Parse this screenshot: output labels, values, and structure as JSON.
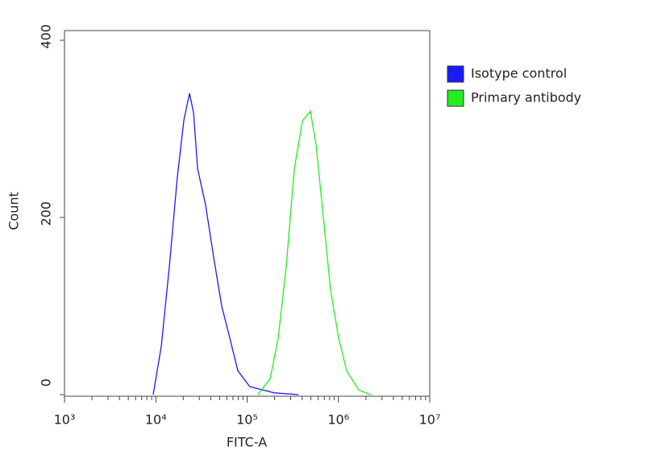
{
  "chart_data": {
    "type": "line",
    "xlabel": "FITC-A",
    "ylabel": "Count",
    "xscale": "log",
    "xlim": [
      1000,
      10000000
    ],
    "ylim": [
      0,
      400
    ],
    "xticks": [
      {
        "value": 1000,
        "label": "10³"
      },
      {
        "value": 10000,
        "label": "10⁴"
      },
      {
        "value": 100000,
        "label": "10⁵"
      },
      {
        "value": 1000000,
        "label": "10⁶"
      },
      {
        "value": 10000000,
        "label": "10⁷"
      }
    ],
    "xminor_ticks": [
      2000,
      3000,
      4000,
      5000,
      6000,
      7000,
      8000,
      9000,
      20000,
      30000,
      40000,
      50000,
      60000,
      70000,
      80000,
      90000,
      200000,
      300000,
      400000,
      500000,
      600000,
      700000,
      800000,
      900000,
      2000000,
      3000000,
      4000000,
      5000000,
      6000000,
      7000000,
      8000000,
      9000000
    ],
    "yticks": [
      0,
      200,
      400
    ],
    "legend": "right",
    "series": [
      {
        "name": "Isotype control",
        "color": "#1a1aff",
        "x": [
          9360,
          11500,
          14100,
          17200,
          20300,
          23400,
          25900,
          28700,
          35100,
          43000,
          52700,
          64600,
          79100,
          107000,
          198000,
          364000
        ],
        "values": [
          0,
          55,
          145,
          245,
          310,
          340,
          318,
          255,
          214,
          155,
          100,
          64,
          27,
          9,
          2,
          0
        ]
      },
      {
        "name": "Primary antibody",
        "color": "#22ee22",
        "x": [
          131000,
          179000,
          219000,
          268000,
          329000,
          403000,
          493000,
          569000,
          670000,
          820000,
          1005000,
          1230000,
          1670000,
          2270000
        ],
        "values": [
          0,
          18,
          64,
          145,
          255,
          309,
          320,
          282,
          209,
          118,
          64,
          27,
          5,
          0
        ]
      }
    ]
  }
}
